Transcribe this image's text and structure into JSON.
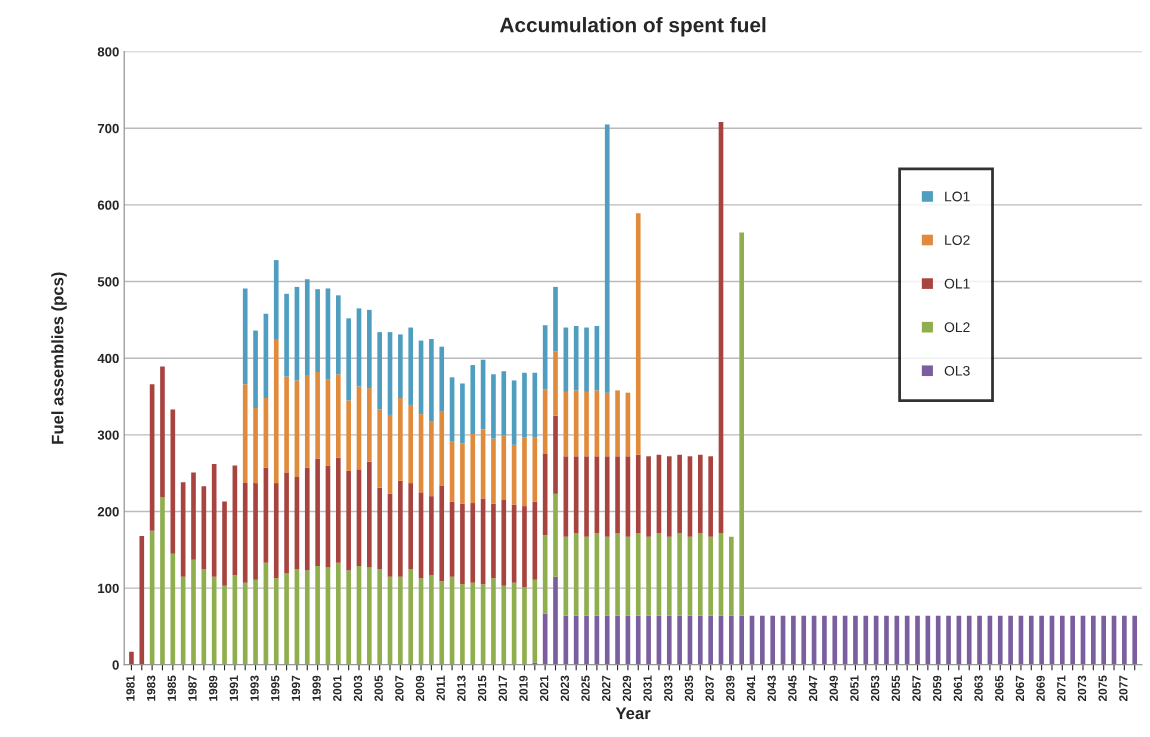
{
  "chart_data": {
    "type": "bar",
    "title": "Accumulation of spent fuel",
    "xlabel": "Year",
    "ylabel": "Fuel assemblies (pcs)",
    "stacked": true,
    "categories": [
      "1981",
      null,
      "1983",
      null,
      "1985",
      null,
      "1987",
      null,
      "1989",
      null,
      "1991",
      null,
      "1993",
      null,
      "1995",
      null,
      "1997",
      null,
      "1999",
      null,
      "2001",
      null,
      "2003",
      null,
      "2005",
      null,
      "2007",
      null,
      "2009",
      null,
      "2011",
      null,
      "2013",
      null,
      "2015",
      null,
      "2017",
      null,
      "2019",
      null,
      "2021",
      null,
      "2023",
      null,
      "2025",
      null,
      "2027",
      null,
      "2029",
      null,
      "2031",
      null,
      "2033",
      null,
      "2035",
      null,
      "2037",
      null,
      "2039",
      null,
      "2041",
      null,
      "2043",
      null,
      "2045",
      null,
      "2047",
      null,
      "2049",
      null,
      "2051",
      null,
      "2053",
      null,
      "2055",
      null,
      "2057",
      null,
      "2059",
      null,
      "2061",
      null,
      "2063",
      null,
      "2065",
      null,
      "2067",
      null,
      "2069",
      null,
      "2071",
      null,
      "2073",
      null,
      "2075",
      null,
      "2077",
      null
    ],
    "series": [
      {
        "name": "OL3",
        "color": "#7a5ea0",
        "values": [
          null,
          null,
          null,
          null,
          null,
          null,
          null,
          null,
          null,
          null,
          null,
          null,
          null,
          null,
          null,
          null,
          null,
          null,
          null,
          null,
          null,
          null,
          null,
          null,
          null,
          null,
          null,
          null,
          null,
          null,
          null,
          null,
          null,
          null,
          null,
          null,
          null,
          null,
          null,
          3,
          67,
          115,
          64,
          64,
          64,
          64,
          64,
          64,
          64,
          64,
          64,
          64,
          64,
          64,
          64,
          64,
          64,
          64,
          64,
          64,
          64,
          64,
          64,
          64,
          64,
          64,
          64,
          64,
          64,
          64,
          64,
          64,
          64,
          64,
          64,
          64,
          64,
          64,
          64,
          64,
          64,
          64,
          64,
          64,
          64,
          64,
          64,
          64,
          64,
          64,
          64,
          64,
          64,
          64,
          64,
          64,
          64,
          64
        ]
      },
      {
        "name": "OL2",
        "color": "#8fae4e",
        "values": [
          null,
          null,
          175,
          219,
          145,
          115,
          137,
          125,
          115,
          103,
          117,
          107,
          111,
          133,
          113,
          119,
          125,
          123,
          129,
          127,
          133,
          123,
          129,
          127,
          125,
          115,
          115,
          125,
          113,
          117,
          109,
          115,
          105,
          107,
          105,
          113,
          103,
          107,
          101,
          108,
          102,
          108,
          103,
          108,
          103,
          108,
          103,
          108,
          103,
          108,
          103,
          108,
          103,
          108,
          103,
          108,
          103,
          108,
          103,
          500,
          null,
          null,
          null,
          null,
          null,
          null,
          null,
          null,
          null,
          null,
          null,
          null,
          null,
          null,
          null,
          null,
          null,
          null,
          null,
          null,
          null,
          null,
          null,
          null,
          null,
          null,
          null,
          null,
          null,
          null,
          null,
          null,
          null,
          null,
          null,
          null,
          null,
          null
        ]
      },
      {
        "name": "OL1",
        "color": "#a84440",
        "values": [
          17,
          168,
          191,
          170,
          188,
          123,
          114,
          108,
          147,
          110,
          143,
          130,
          126,
          124,
          124,
          132,
          120,
          134,
          140,
          133,
          137,
          130,
          126,
          138,
          106,
          108,
          125,
          112,
          112,
          103,
          125,
          98,
          105,
          104,
          112,
          97,
          112,
          102,
          106,
          102,
          106,
          102,
          105,
          100,
          105,
          100,
          105,
          100,
          105,
          102,
          105,
          102,
          105,
          102,
          105,
          102,
          105,
          536,
          null,
          null,
          null,
          null,
          null,
          null,
          null,
          null,
          null,
          null,
          null,
          null,
          null,
          null,
          null,
          null,
          null,
          null,
          null,
          null,
          null,
          null,
          null,
          null,
          null,
          null,
          null,
          null,
          null,
          null,
          null,
          null,
          null,
          null,
          null,
          null,
          null,
          null,
          null,
          null
        ]
      },
      {
        "name": "LO2",
        "color": "#e08a3c",
        "values": [
          null,
          null,
          null,
          null,
          null,
          null,
          null,
          null,
          null,
          null,
          null,
          129,
          98,
          91,
          188,
          125,
          126,
          120,
          113,
          112,
          109,
          92,
          108,
          96,
          102,
          103,
          108,
          102,
          102,
          97,
          97,
          78,
          79,
          90,
          90,
          85,
          84,
          78,
          90,
          84,
          84,
          84,
          84,
          86,
          84,
          86,
          83,
          86,
          83,
          315,
          null,
          null,
          null,
          null,
          null,
          null,
          null,
          null,
          null,
          null,
          null,
          null,
          null,
          null,
          null,
          null,
          null,
          null,
          null,
          null,
          null,
          null,
          null,
          null,
          null,
          null,
          null,
          null,
          null,
          null,
          null,
          null,
          null,
          null,
          null,
          null,
          null,
          null,
          null,
          null,
          null,
          null,
          null,
          null,
          null,
          null,
          null,
          null
        ]
      },
      {
        "name": "LO1",
        "color": "#4f9ec0",
        "values": [
          null,
          null,
          null,
          null,
          null,
          null,
          null,
          null,
          null,
          null,
          null,
          125,
          101,
          110,
          103,
          108,
          122,
          126,
          108,
          119,
          103,
          107,
          102,
          102,
          101,
          108,
          83,
          101,
          96,
          108,
          84,
          84,
          78,
          90,
          91,
          84,
          84,
          84,
          84,
          84,
          84,
          84,
          84,
          84,
          84,
          84,
          350,
          null,
          null,
          null,
          null,
          null,
          null,
          null,
          null,
          null,
          null,
          null,
          null,
          null,
          null,
          null,
          null,
          null,
          null,
          null,
          null,
          null,
          null,
          null,
          null,
          null,
          null,
          null,
          null,
          null,
          null,
          null,
          null,
          null,
          null,
          null,
          null,
          null,
          null,
          null,
          null,
          null,
          null,
          null,
          null,
          null,
          null,
          null,
          null,
          null,
          null,
          null
        ]
      }
    ],
    "ylim": [
      0,
      800
    ],
    "yticks": [
      0,
      100,
      200,
      300,
      400,
      500,
      600,
      700,
      800
    ],
    "grid": "y",
    "legend": "top right"
  }
}
